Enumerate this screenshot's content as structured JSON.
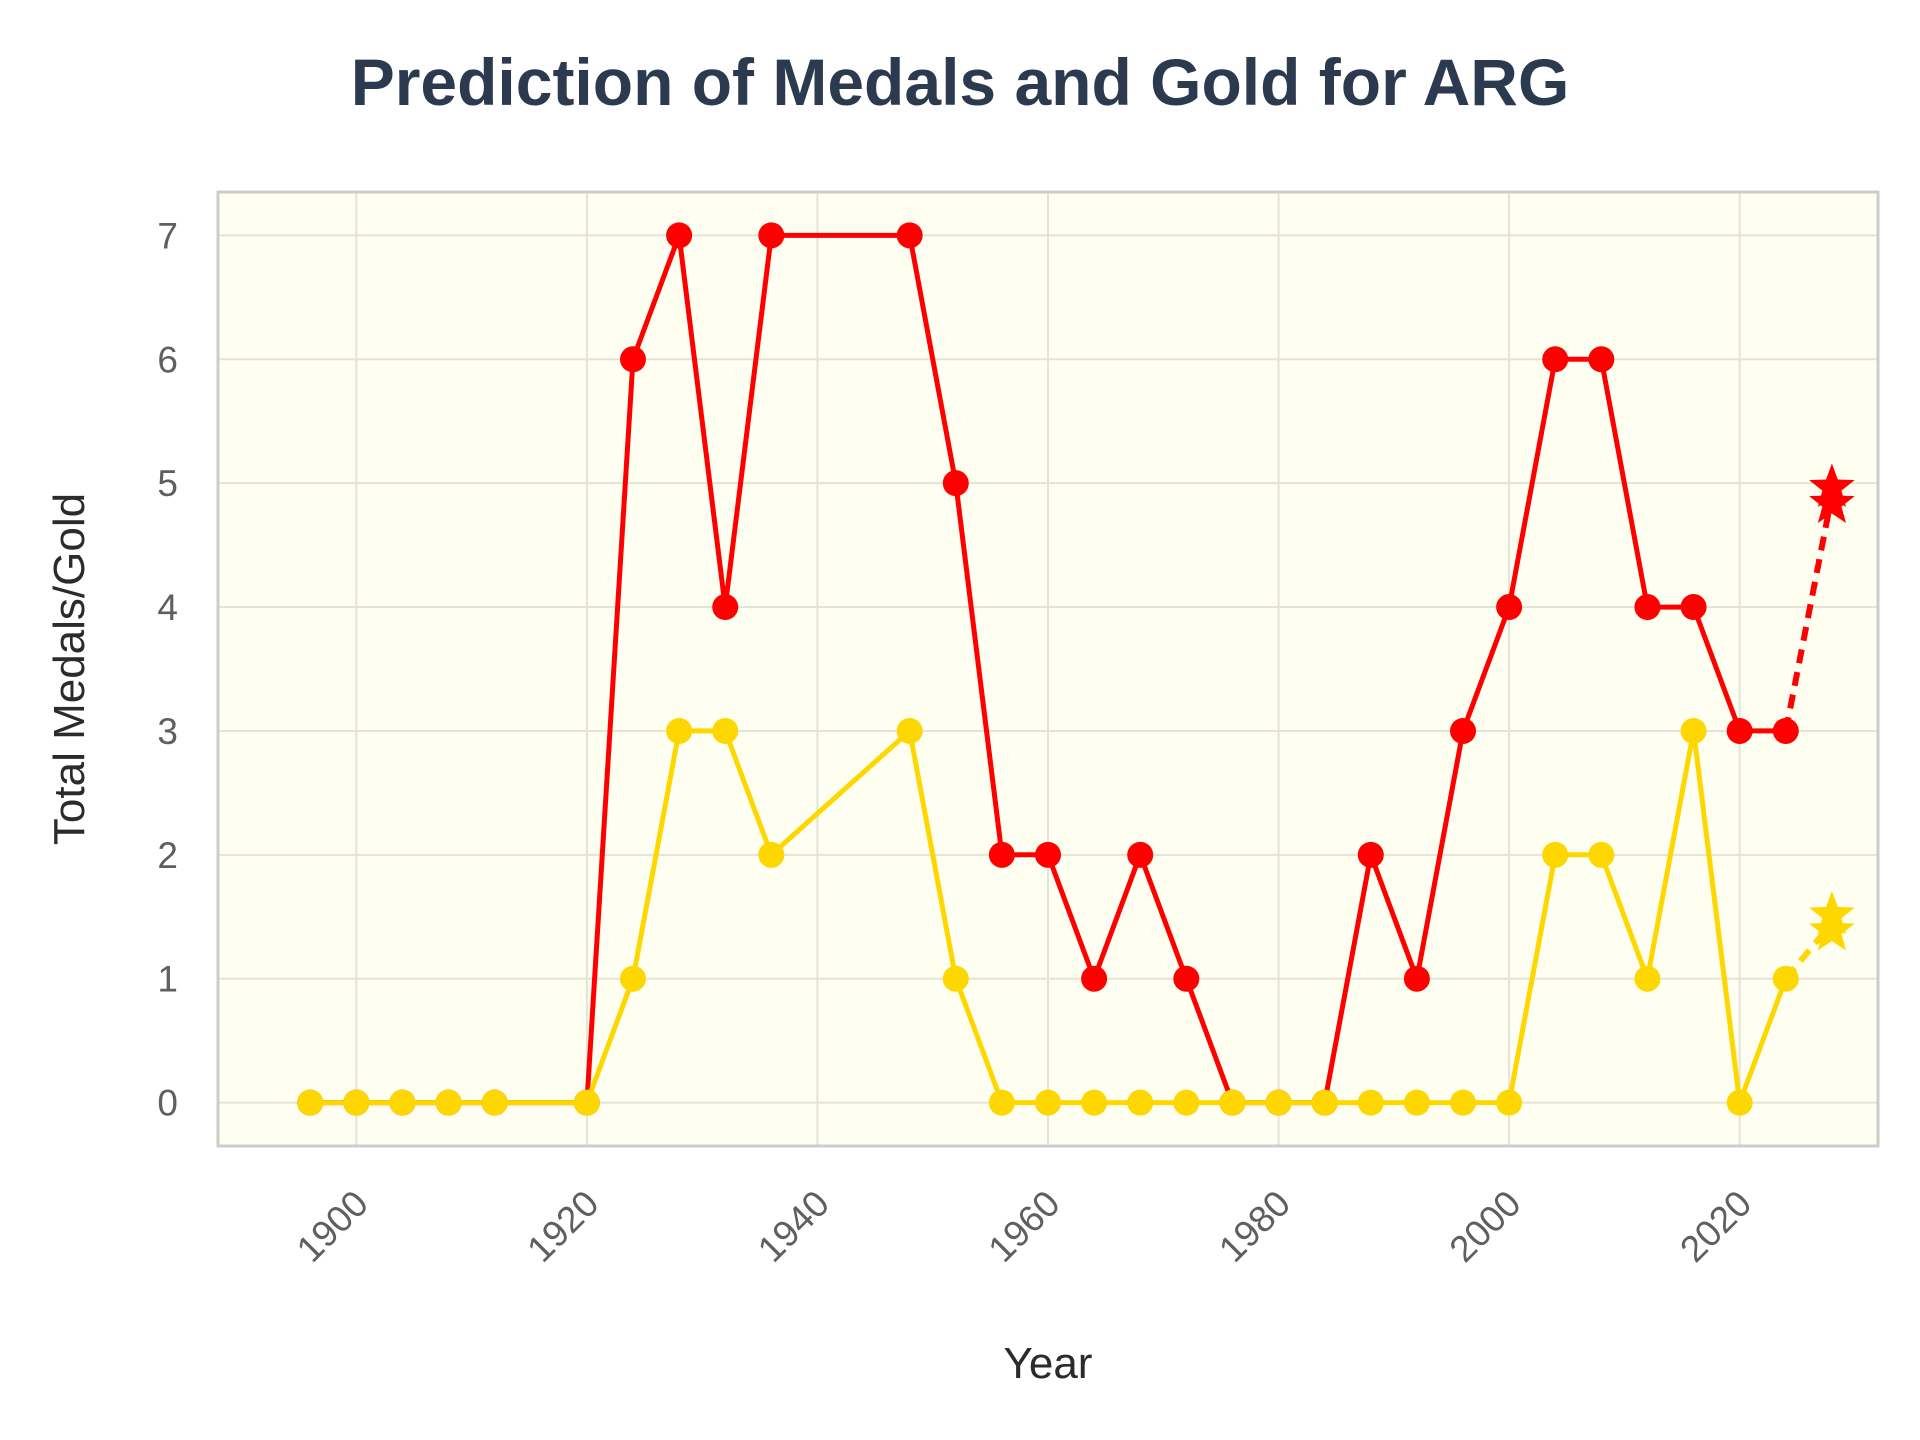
{
  "chart_data": {
    "type": "line",
    "title": "Prediction of Medals and Gold for ARG",
    "xlabel": "Year",
    "ylabel": "Total Medals/Gold",
    "xlim": [
      1888,
      2032
    ],
    "ylim": [
      -0.35,
      7.35
    ],
    "x_ticks": [
      1900,
      1920,
      1940,
      1960,
      1980,
      2000,
      2020
    ],
    "y_ticks": [
      0,
      1,
      2,
      3,
      4,
      5,
      6,
      7
    ],
    "grid": true,
    "plot_background": "#fefff0",
    "series": [
      {
        "color": "#ff0000",
        "x": [
          1896,
          1900,
          1904,
          1908,
          1912,
          1920,
          1924,
          1928,
          1932,
          1936,
          1948,
          1952,
          1956,
          1960,
          1964,
          1968,
          1972,
          1976,
          1980,
          1984,
          1988,
          1992,
          1996,
          2000,
          2004,
          2008,
          2012,
          2016,
          2020,
          2024
        ],
        "y": [
          0,
          0,
          0,
          0,
          0,
          0,
          6,
          7,
          4,
          7,
          7,
          5,
          2,
          2,
          1,
          2,
          1,
          0,
          0,
          0,
          2,
          1,
          3,
          4,
          6,
          6,
          4,
          4,
          3,
          3
        ],
        "prediction": {
          "x": [
            2024,
            2028
          ],
          "y": [
            3,
            4.9
          ]
        }
      },
      {
        "color": "#ffd700",
        "x": [
          1896,
          1900,
          1904,
          1908,
          1912,
          1920,
          1924,
          1928,
          1932,
          1936,
          1948,
          1952,
          1956,
          1960,
          1964,
          1968,
          1972,
          1976,
          1980,
          1984,
          1988,
          1992,
          1996,
          2000,
          2004,
          2008,
          2012,
          2016,
          2020,
          2024
        ],
        "y": [
          0,
          0,
          0,
          0,
          0,
          0,
          1,
          3,
          3,
          2,
          3,
          1,
          0,
          0,
          0,
          0,
          0,
          0,
          0,
          0,
          0,
          0,
          0,
          0,
          2,
          2,
          1,
          3,
          0,
          1
        ],
        "prediction": {
          "x": [
            2024,
            2028
          ],
          "y": [
            1,
            1.45
          ]
        }
      }
    ]
  }
}
